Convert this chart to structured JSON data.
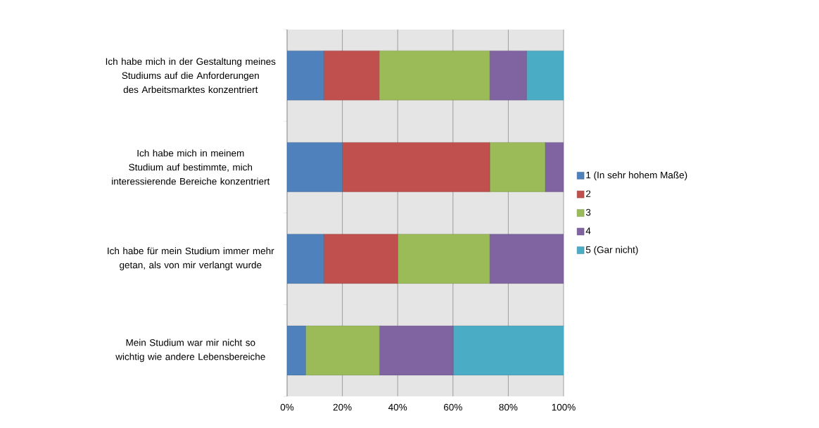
{
  "chart_data": {
    "type": "bar",
    "orientation": "horizontal",
    "stacked": true,
    "categories": [
      "Ich habe mich in der Gestaltung meines Studiums auf die Anforderungen des Arbeitsmarktes konzentriert",
      "Ich habe mich in meinem Studium auf bestimmte, mich interessierende Bereiche konzentriert",
      "Ich habe für mein Studium immer mehr getan, als von mir verlangt wurde",
      "Mein Studium war mir nicht so wichtig wie andere Lebensbereiche"
    ],
    "series": [
      {
        "name": "1 (In sehr hohem Maße)",
        "color": "#4f81bd",
        "values": [
          13.3,
          20,
          13.3,
          6.7
        ]
      },
      {
        "name": "2",
        "color": "#c0504d",
        "values": [
          20,
          53.3,
          26.7,
          0
        ]
      },
      {
        "name": "3",
        "color": "#9bbb59",
        "values": [
          40,
          20,
          33.3,
          26.7
        ]
      },
      {
        "name": "4",
        "color": "#8064a2",
        "values": [
          13.3,
          6.7,
          26.7,
          26.7
        ]
      },
      {
        "name": "5 (Gar nicht)",
        "color": "#4bacc6",
        "values": [
          13.4,
          0,
          0,
          40
        ]
      }
    ],
    "xlim": [
      0,
      100
    ],
    "xticks": [
      {
        "value": 0,
        "label": "0%"
      },
      {
        "value": 20,
        "label": "20%"
      },
      {
        "value": 40,
        "label": "40%"
      },
      {
        "value": 60,
        "label": "60%"
      },
      {
        "value": 80,
        "label": "80%"
      },
      {
        "value": 100,
        "label": "100%"
      }
    ],
    "grid": "x",
    "legend": "right"
  }
}
